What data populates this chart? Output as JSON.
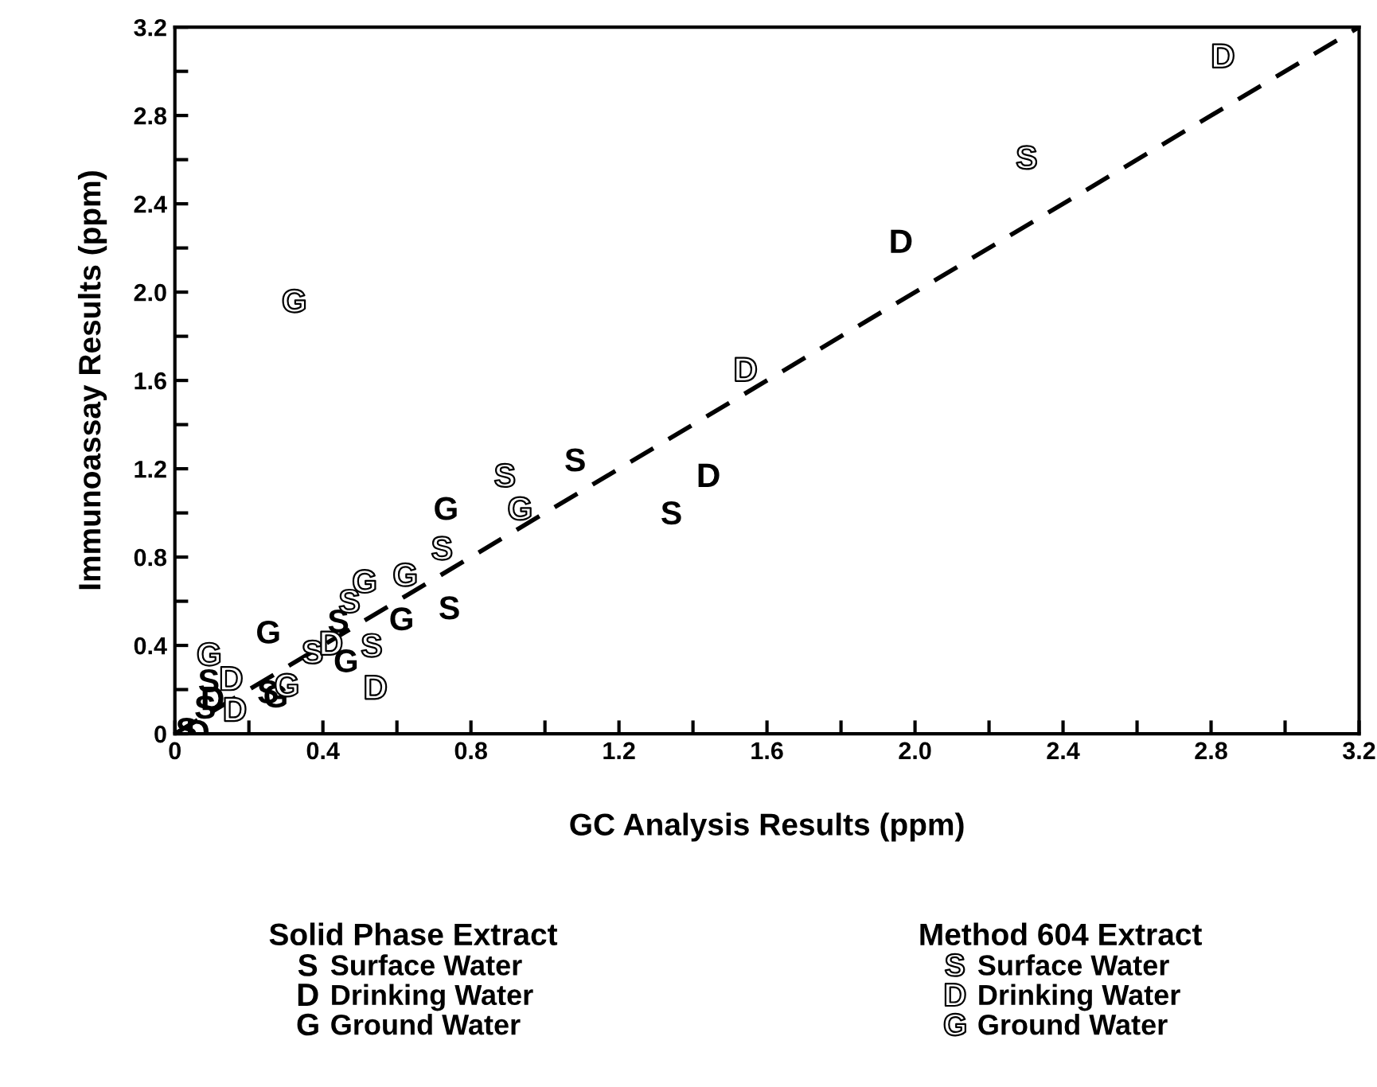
{
  "chart_data": {
    "type": "scatter",
    "xlabel": "GC Analysis Results (ppm)",
    "ylabel": "Immunoassay Results (ppm)",
    "legend_title": [
      "Solid Phase Extract",
      "Method 604 Extract"
    ],
    "xlim": [
      0,
      3.2
    ],
    "ylim": [
      0,
      3.2
    ],
    "xticks": [
      0,
      {
        "value": 0.2,
        "label": null
      },
      0.4,
      {
        "value": 0.6,
        "label": null
      },
      0.8,
      {
        "value": 1.0,
        "label": null
      },
      1.2,
      {
        "value": 1.4,
        "label": null
      },
      1.6,
      {
        "value": 1.8,
        "label": null
      },
      {
        "value": 2.0,
        "label": "2.0"
      },
      {
        "value": 2.2,
        "label": null
      },
      2.4,
      {
        "value": 2.6,
        "label": null
      },
      2.8,
      {
        "value": 3.0,
        "label": null
      },
      3.2
    ],
    "yticks": [
      0,
      {
        "value": 0.2,
        "label": null
      },
      0.4,
      {
        "value": 0.6,
        "label": null
      },
      0.8,
      {
        "value": 1.0,
        "label": null
      },
      1.2,
      {
        "value": 1.4,
        "label": null
      },
      1.6,
      {
        "value": 1.8,
        "label": null
      },
      {
        "value": 2.0,
        "label": "2.0"
      },
      {
        "value": 2.2,
        "label": null
      },
      2.4,
      {
        "value": 2.6,
        "label": null
      },
      2.8,
      {
        "value": 3.0,
        "label": null
      },
      3.2
    ],
    "grid": false,
    "legend": "bottom",
    "series": [
      {
        "type": "line",
        "color": "#000000",
        "line_style": "dashed",
        "x": [
          0,
          3.2
        ],
        "values": [
          0,
          3.2
        ]
      },
      {
        "name": "Surface Water",
        "color": "#000000",
        "x": [
          1.08,
          1.34,
          0.74,
          0.44,
          0.25,
          0.09,
          0.08,
          0.03
        ],
        "values": [
          1.24,
          1.0,
          0.57,
          0.51,
          0.19,
          0.24,
          0.12,
          0.02
        ]
      },
      {
        "name": "Drinking Water",
        "color": "#000000",
        "x": [
          1.96,
          1.44,
          0.1,
          0.06
        ],
        "values": [
          2.23,
          1.17,
          0.16,
          0.01
        ]
      },
      {
        "name": "Ground Water",
        "color": "#000000",
        "x": [
          0.73,
          0.61,
          0.46,
          0.25,
          0.27
        ],
        "values": [
          1.02,
          0.52,
          0.33,
          0.46,
          0.17
        ]
      },
      {
        "name": "Surface Water",
        "color": "#000000",
        "x": [
          2.3,
          0.89,
          0.72,
          0.47,
          0.53,
          0.37
        ],
        "values": [
          2.61,
          1.17,
          0.84,
          0.6,
          0.4,
          0.37
        ]
      },
      {
        "name": "Drinking Water",
        "color": "#000000",
        "x": [
          2.83,
          1.54,
          0.54,
          0.42,
          0.15,
          0.16
        ],
        "values": [
          3.07,
          1.65,
          0.21,
          0.41,
          0.25,
          0.11
        ]
      },
      {
        "name": "Ground Water",
        "color": "#000000",
        "x": [
          0.32,
          0.93,
          0.62,
          0.51,
          0.3,
          0.09
        ],
        "values": [
          1.96,
          1.02,
          0.72,
          0.69,
          0.22,
          0.36
        ]
      }
    ]
  }
}
